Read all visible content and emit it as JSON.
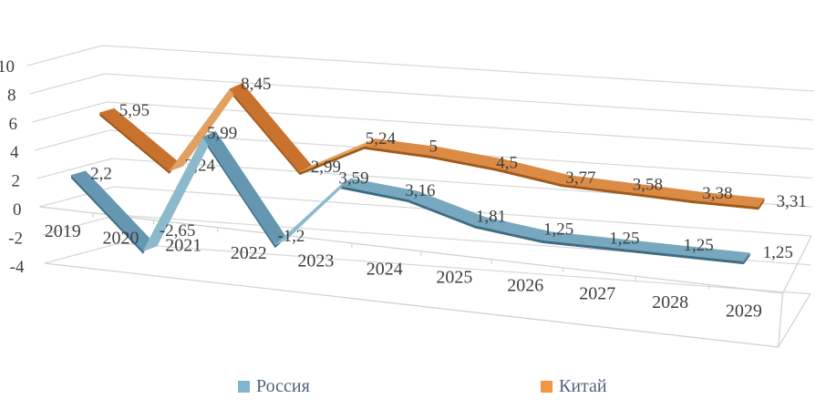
{
  "chart_data": {
    "type": "line",
    "projection": "3d",
    "title": "",
    "categories": [
      "2019",
      "2020",
      "2021",
      "2022",
      "2023",
      "2024",
      "2025",
      "2026",
      "2027",
      "2028",
      "2029"
    ],
    "series": [
      {
        "name": "Россия",
        "values": [
          2.2,
          -2.65,
          5.99,
          -1.2,
          3.59,
          3.16,
          1.81,
          1.25,
          1.25,
          1.25,
          1.25
        ],
        "point_labels": [
          "2,2",
          "-2,65",
          "5,99",
          "-1,2",
          "3,59",
          "3,16",
          "1,81",
          "1,25",
          "1,25",
          "1,25",
          "1,25"
        ],
        "color": "#78a8bf",
        "color_light": "#8cb9cc",
        "color_dark": "#6697b0",
        "color_side": "#3f6c84"
      },
      {
        "name": "Китай",
        "values": [
          5.95,
          2.24,
          8.45,
          2.99,
          5.24,
          5,
          4.5,
          3.77,
          3.58,
          3.38,
          3.31
        ],
        "point_labels": [
          "5,95",
          "2,24",
          "8,45",
          "2,99",
          "5,24",
          "5",
          "4,5",
          "3,77",
          "3,58",
          "3,38",
          "3,31"
        ],
        "color": "#dc8b45",
        "color_light": "#e2a161",
        "color_dark": "#c9722e",
        "color_side": "#a05a1b"
      }
    ],
    "y_axis": {
      "tick_labels": [
        "10",
        "8",
        "6",
        "4",
        "2",
        "0",
        "-2",
        "-4"
      ],
      "tick_values": [
        10,
        8,
        6,
        4,
        2,
        0,
        -2,
        -4
      ],
      "min": -4,
      "max": 10
    },
    "grid": true,
    "grid_color": "#d7d7d7",
    "frame_color": "#cfcfcf",
    "label_color": "#3f3f3f",
    "legend": {
      "position": "bottom",
      "items": [
        {
          "label": "Россия",
          "swatch": "#82b4cd"
        },
        {
          "label": "Китай",
          "swatch": "#f29646"
        }
      ]
    }
  }
}
